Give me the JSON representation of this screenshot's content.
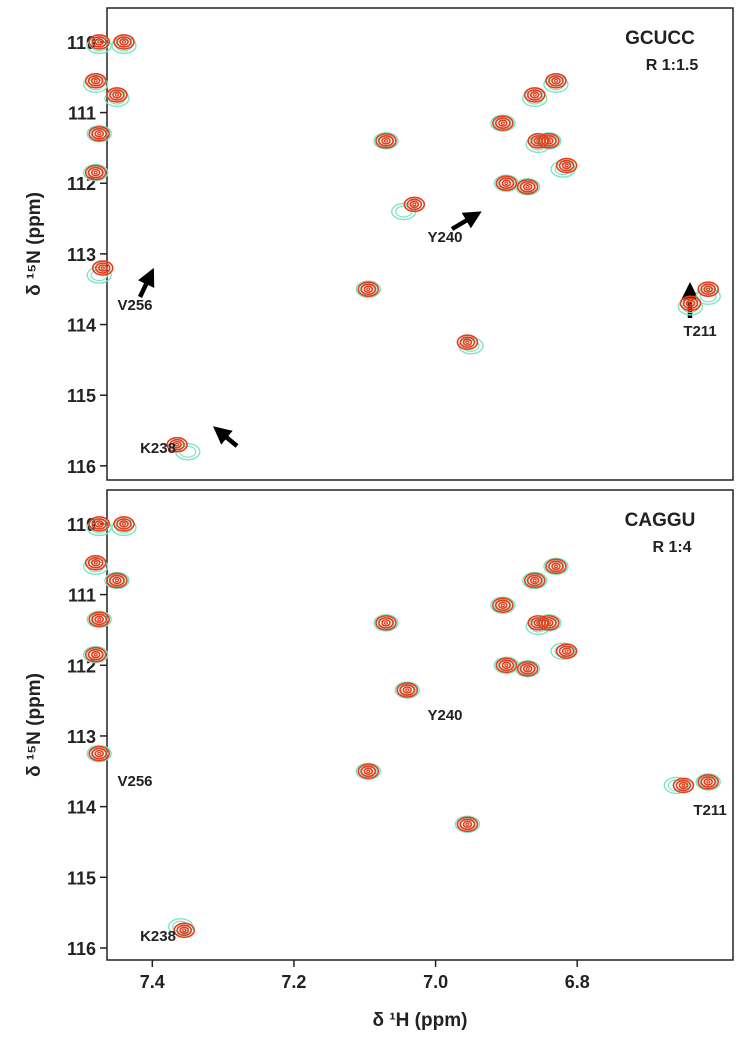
{
  "chart_data": [
    {
      "type": "contour",
      "title": "GCUCC",
      "subtitle": "R 1:1.5",
      "y_label": "δ ¹⁵N (ppm)",
      "xlim": [
        7.464,
        6.58
      ],
      "ylim": [
        109.52,
        116.2
      ],
      "yticks": [
        110,
        111,
        112,
        113,
        114,
        115,
        116
      ],
      "annotations": [
        "V256",
        "K238",
        "Y240",
        "T211"
      ],
      "series": [
        {
          "color": "#7fe3c4",
          "x": [
            7.475,
            7.44,
            7.48,
            7.45,
            7.475,
            7.48,
            7.475,
            7.35,
            7.07,
            7.045,
            7.095,
            6.95,
            6.64,
            6.615,
            6.86,
            6.83,
            6.905,
            6.855,
            6.84,
            6.82,
            6.87,
            6.9
          ],
          "values": [
            110.05,
            110.05,
            110.6,
            110.8,
            111.3,
            111.85,
            113.3,
            115.8,
            111.4,
            112.4,
            113.5,
            114.3,
            113.75,
            113.6,
            110.8,
            110.6,
            111.15,
            111.45,
            111.4,
            111.8,
            112.05,
            112.0
          ]
        },
        {
          "color": "#e0401e",
          "x": [
            7.475,
            7.44,
            7.48,
            7.45,
            7.475,
            7.48,
            7.47,
            7.365,
            7.07,
            7.03,
            7.095,
            6.955,
            6.64,
            6.615,
            6.86,
            6.83,
            6.905,
            6.855,
            6.84,
            6.815,
            6.87,
            6.9
          ],
          "values": [
            110.0,
            110.0,
            110.55,
            110.75,
            111.3,
            111.85,
            113.2,
            115.7,
            111.4,
            112.3,
            113.5,
            114.25,
            113.7,
            113.5,
            110.75,
            110.55,
            111.15,
            111.4,
            111.4,
            111.75,
            112.05,
            112.0
          ]
        }
      ]
    },
    {
      "type": "contour",
      "title": "CAGGU",
      "subtitle": "R 1:4",
      "y_label": "δ ¹⁵N (ppm)",
      "x_label": "δ ¹H (ppm)",
      "xlim": [
        7.464,
        6.58
      ],
      "ylim": [
        109.52,
        116.17
      ],
      "yticks": [
        110,
        111,
        112,
        113,
        114,
        115,
        116
      ],
      "xticks": [
        7.4,
        7.2,
        {
          "value": 7,
          "label": "7.0"
        },
        6.8
      ],
      "annotations": [
        "V256",
        "K238",
        "Y240",
        "T211"
      ],
      "series": [
        {
          "color": "#7fe3c4",
          "x": [
            7.475,
            7.44,
            7.48,
            7.45,
            7.475,
            7.48,
            7.475,
            7.36,
            7.07,
            7.04,
            7.095,
            6.955,
            6.66,
            6.615,
            6.86,
            6.83,
            6.905,
            6.855,
            6.84,
            6.82,
            6.87,
            6.9
          ],
          "values": [
            110.05,
            110.05,
            110.6,
            110.8,
            111.35,
            111.85,
            113.25,
            115.7,
            111.4,
            112.35,
            113.5,
            114.25,
            113.7,
            113.65,
            110.8,
            110.6,
            111.15,
            111.45,
            111.4,
            111.8,
            112.05,
            112.0
          ]
        },
        {
          "color": "#e0401e",
          "x": [
            7.475,
            7.44,
            7.48,
            7.45,
            7.475,
            7.48,
            7.475,
            7.355,
            7.07,
            7.04,
            7.095,
            6.955,
            6.65,
            6.615,
            6.86,
            6.83,
            6.905,
            6.855,
            6.84,
            6.815,
            6.87,
            6.9
          ],
          "values": [
            110.0,
            110.0,
            110.55,
            110.8,
            111.35,
            111.85,
            113.25,
            115.75,
            111.4,
            112.35,
            113.5,
            114.25,
            113.7,
            113.65,
            110.8,
            110.6,
            111.15,
            111.4,
            111.4,
            111.8,
            112.05,
            112.0
          ]
        }
      ]
    }
  ]
}
